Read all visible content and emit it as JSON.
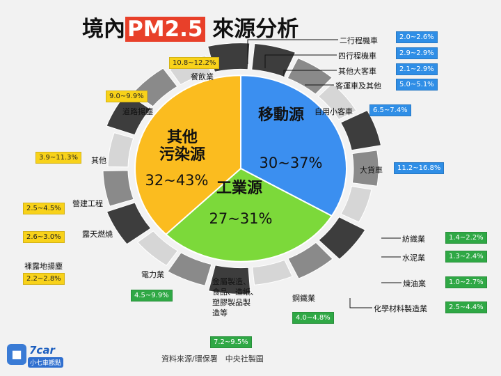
{
  "title": {
    "pre": "境內",
    "highlight": "PM2.5",
    "post": " 來源分析"
  },
  "colors": {
    "mobile": "#3b8ff0",
    "industry": "#7cd93a",
    "other": "#fbbc1f",
    "outer_dark": "#3d3d3d",
    "outer_mid": "#8a8a8a",
    "outer_light": "#d6d6d6"
  },
  "chart_data": {
    "type": "pie",
    "categories": [
      "移動源",
      "工業源",
      "其他污染源"
    ],
    "category_lines": [
      [
        "移動源"
      ],
      [
        "工業源"
      ],
      [
        "其他",
        "污染源"
      ]
    ],
    "value_labels": [
      "30~37%",
      "27~31%",
      "32~43%"
    ],
    "values": [
      33.5,
      29,
      37.5
    ],
    "sub_sources": [
      {
        "label": "二行程機車",
        "range": "2.0~2.6%",
        "group": "移動源"
      },
      {
        "label": "四行程機車",
        "range": "2.9~2.9%",
        "group": "移動源"
      },
      {
        "label": "其他大客車",
        "range": "2.1~2.9%",
        "group": "移動源"
      },
      {
        "label": "客運車及其他",
        "range": "5.0~5.1%",
        "group": "移動源"
      },
      {
        "label": "自用小客車",
        "range": "6.5~7.4%",
        "group": "移動源"
      },
      {
        "label": "大貨車",
        "range": "11.2~16.8%",
        "group": "移動源"
      },
      {
        "label": "紡織業",
        "range": "1.4~2.2%",
        "group": "工業源"
      },
      {
        "label": "水泥業",
        "range": "1.3~2.4%",
        "group": "工業源"
      },
      {
        "label": "煉油業",
        "range": "1.0~2.7%",
        "group": "工業源"
      },
      {
        "label": "化學材料製造業",
        "range": "2.5~4.4%",
        "group": "工業源"
      },
      {
        "label": "鋼鐵業",
        "range": "4.0~4.8%",
        "group": "工業源"
      },
      {
        "label": "金屬製造、食品、造紙、塑膠製品製造等",
        "lines": [
          "金屬製造、",
          "食品、造紙、",
          "塑膠製品製",
          "造等"
        ],
        "range": "7.2~9.5%",
        "group": "工業源"
      },
      {
        "label": "電力業",
        "range": "4.5~9.9%",
        "group": "工業源"
      },
      {
        "label": "裸露地揚塵",
        "range": "2.2~2.8%",
        "group": "其他污染源"
      },
      {
        "label": "露天燃燒",
        "range": "2.6~3.0%",
        "group": "其他污染源"
      },
      {
        "label": "營建工程",
        "range": "2.5~4.5%",
        "group": "其他污染源"
      },
      {
        "label": "其他",
        "range": "3.9~11.3%",
        "group": "其他污染源"
      },
      {
        "label": "道路揚塵",
        "range": "9.0~9.9%",
        "group": "其他污染源"
      },
      {
        "label": "餐飲業",
        "range": "10.8~12.2%",
        "group": "其他污染源"
      }
    ]
  },
  "source": "資料來源/環保署　中央社製圖",
  "logo": {
    "name": "7car",
    "subtitle": "小七車觀點",
    "icon": "car-icon"
  }
}
